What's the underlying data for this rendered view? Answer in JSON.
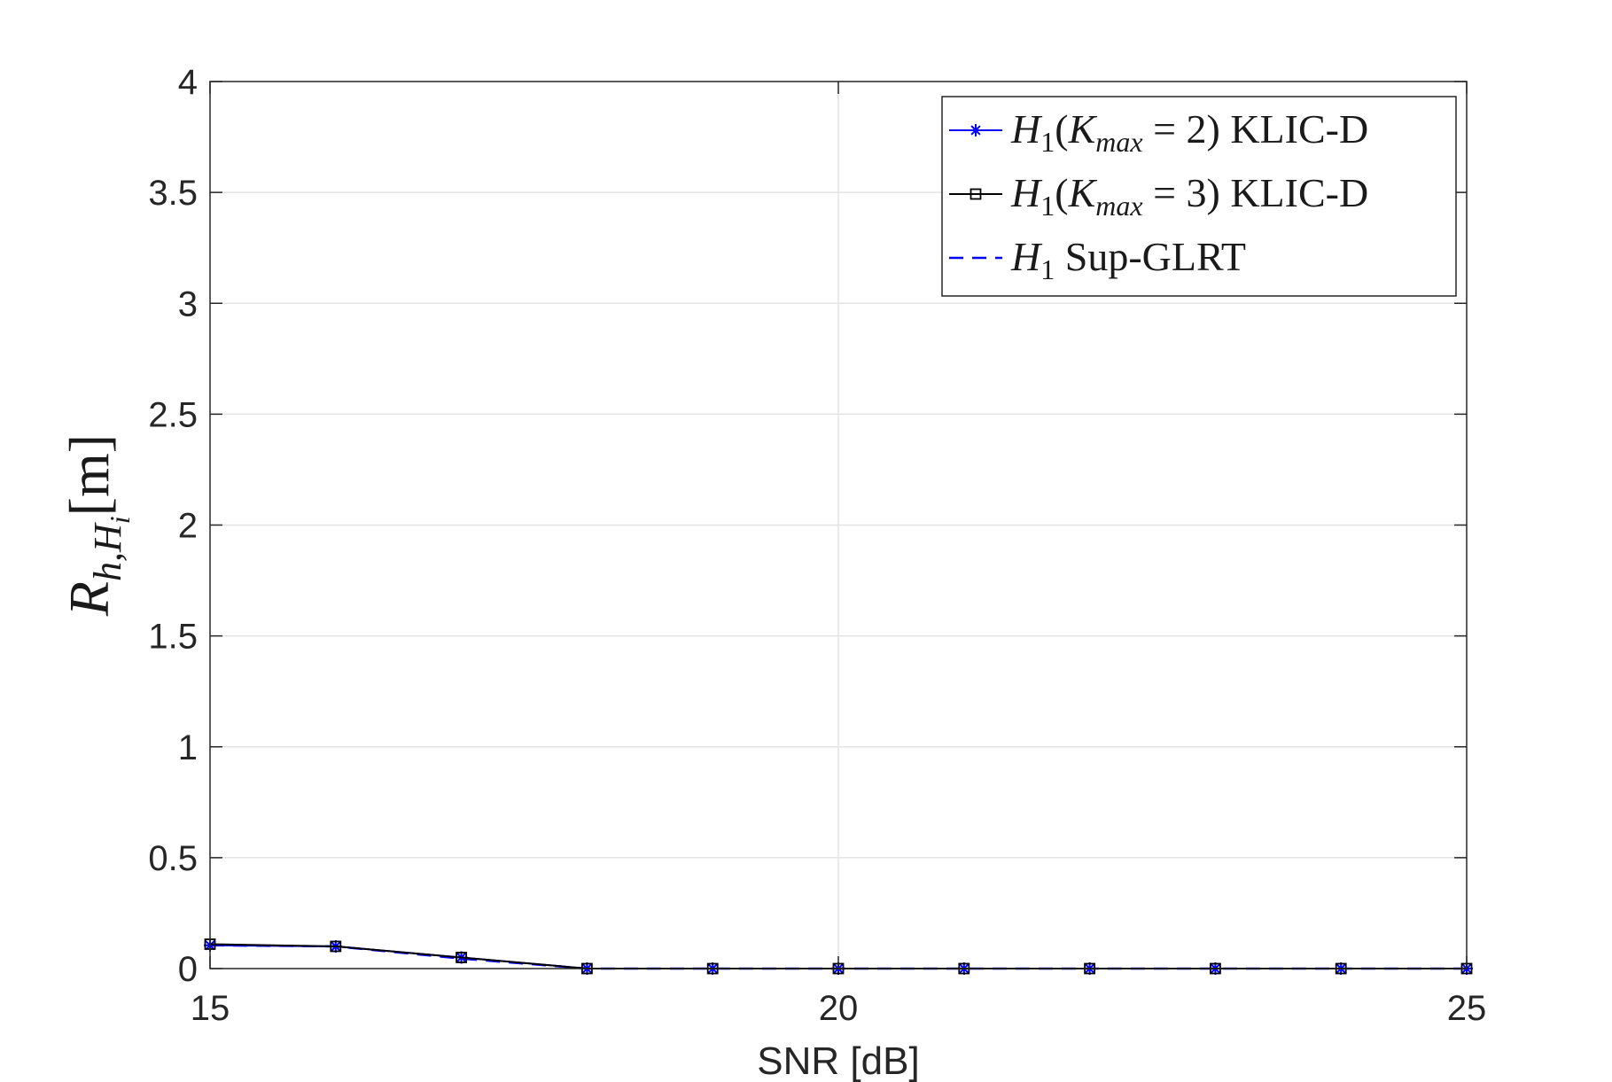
{
  "chart_data": {
    "type": "line",
    "xlabel": "SNR [dB]",
    "ylabel": {
      "base": "R",
      "sub1": "h,H",
      "sub2": "i",
      "suffix": "[m]"
    },
    "xlim": [
      15,
      25
    ],
    "ylim": [
      0,
      4
    ],
    "xticks": [
      15,
      20,
      25
    ],
    "yticks": [
      0,
      0.5,
      1,
      1.5,
      2,
      2.5,
      3,
      3.5,
      4
    ],
    "grid": true,
    "legend_position": "top-right",
    "x": [
      15,
      16,
      17,
      18,
      19,
      20,
      21,
      22,
      23,
      24,
      25
    ],
    "series": [
      {
        "name": "H1(Kmax = 2) KLIC-D",
        "label_parts": {
          "h": "H",
          "hsub": "1",
          "open": "(",
          "k": "K",
          "ksub": "max",
          "rest": " = 2) KLIC-D"
        },
        "color": "#0000ff",
        "style": "solid",
        "marker": "asterisk",
        "values": [
          0.105,
          0.1,
          0.05,
          0,
          0,
          0,
          0,
          0,
          0,
          0,
          0
        ]
      },
      {
        "name": "H1(Kmax = 3) KLIC-D",
        "label_parts": {
          "h": "H",
          "hsub": "1",
          "open": "(",
          "k": "K",
          "ksub": "max",
          "rest": " = 3) KLIC-D"
        },
        "color": "#000000",
        "style": "solid",
        "marker": "square",
        "values": [
          0.11,
          0.1,
          0.05,
          0,
          0,
          0,
          0,
          0,
          0,
          0,
          0
        ]
      },
      {
        "name": "H1 Sup-GLRT",
        "label_parts": {
          "h": "H",
          "hsub": "1",
          "rest": " Sup-GLRT"
        },
        "color": "#0000ff",
        "style": "dashed",
        "marker": "none",
        "values": [
          0.105,
          0.1,
          0.045,
          0,
          0,
          0,
          0,
          0,
          0,
          0,
          0
        ]
      }
    ]
  }
}
